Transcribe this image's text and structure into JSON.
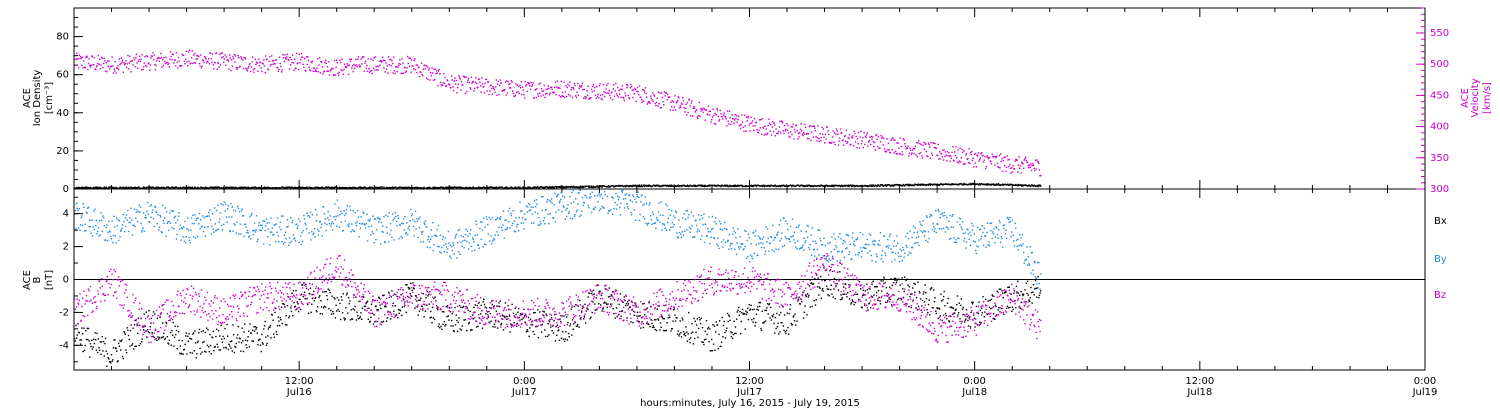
{
  "chart_data": [
    {
      "type": "scatter",
      "panel": "top",
      "ylabel_left": [
        "ACE",
        "Ion Density",
        "[cm⁻³]"
      ],
      "ylabel_right": [
        "ACE",
        "Velocity",
        "[km/s]"
      ],
      "ylim_left": [
        0,
        95
      ],
      "ylim_right": [
        300,
        590
      ],
      "left_ticks": [
        "0",
        "20",
        "40",
        "60",
        "80"
      ],
      "right_ticks": [
        "300",
        "350",
        "400",
        "450",
        "500",
        "550"
      ],
      "x_range_hours": [
        0,
        72
      ],
      "data_end_hours": 51.5,
      "series": [
        {
          "axis": "right",
          "color": "#cc00cc",
          "x": [
            0,
            2,
            4,
            6,
            8,
            10,
            12,
            14,
            15,
            18,
            20,
            22,
            24,
            26,
            28,
            30,
            32,
            34,
            36,
            38,
            40,
            42,
            44,
            46,
            48,
            50,
            51.5
          ],
          "values": [
            505,
            500,
            505,
            510,
            505,
            500,
            505,
            495,
            500,
            500,
            470,
            465,
            460,
            462,
            458,
            455,
            438,
            420,
            405,
            395,
            388,
            380,
            370,
            360,
            350,
            340,
            336
          ]
        },
        {
          "axis": "left",
          "color": "#000000",
          "x": [
            0,
            6,
            12,
            18,
            24,
            30,
            36,
            42,
            48,
            51.5
          ],
          "values": [
            1,
            1,
            1,
            1,
            1,
            2,
            2,
            2,
            3,
            2
          ]
        }
      ]
    },
    {
      "type": "scatter",
      "panel": "bottom",
      "ylabel": [
        "ACE",
        "B",
        "[nT]"
      ],
      "ylim": [
        -5.5,
        5.5
      ],
      "ticks": [
        "-4",
        "-2",
        "0",
        "2",
        "4"
      ],
      "x_range_hours": [
        0,
        72
      ],
      "data_end_hours": 51.5,
      "legend": [
        "Bx",
        "By",
        "Bz"
      ],
      "series": [
        {
          "name": "Bx",
          "color": "#000000",
          "x": [
            0,
            1,
            2,
            4,
            6,
            8,
            10,
            12,
            14,
            16,
            18,
            20,
            22,
            24,
            26,
            28,
            30,
            32,
            34,
            36,
            38,
            40,
            42,
            44,
            46,
            48,
            50,
            51.5
          ],
          "values": [
            -3,
            -4,
            -4.5,
            -2.5,
            -4,
            -3.5,
            -3.5,
            -1,
            -1.5,
            -2,
            -1,
            -2.5,
            -2,
            -2.5,
            -3,
            -1,
            -2,
            -2.5,
            -3.5,
            -2,
            -2.5,
            0,
            -1,
            -0.5,
            -1.5,
            -2,
            -1,
            -0.5
          ]
        },
        {
          "name": "By",
          "color": "#1e88e5",
          "x": [
            0,
            2,
            4,
            6,
            8,
            10,
            12,
            14,
            16,
            18,
            20,
            22,
            24,
            26,
            28,
            30,
            32,
            34,
            36,
            38,
            40,
            42,
            44,
            46,
            48,
            50,
            51.5
          ],
          "values": [
            4,
            3,
            4,
            3,
            4,
            3,
            3,
            4,
            3,
            3.5,
            2,
            3,
            4,
            4.5,
            5,
            4.5,
            3.5,
            3,
            2,
            3,
            2,
            2,
            2,
            3.5,
            2.5,
            3,
            0
          ]
        },
        {
          "name": "Bz",
          "color": "#cc00cc",
          "x": [
            0,
            2,
            4,
            6,
            8,
            10,
            12,
            14,
            16,
            18,
            20,
            22,
            24,
            26,
            28,
            30,
            32,
            34,
            36,
            38,
            40,
            42,
            44,
            46,
            48,
            50,
            51.5
          ],
          "values": [
            -2,
            0,
            -3,
            -1,
            -2,
            -1,
            -1,
            1,
            -2,
            -1,
            -1,
            -2,
            -2,
            -2,
            -1,
            -2,
            -1,
            0,
            0,
            -1,
            1,
            -1,
            -1,
            -3,
            -2.5,
            -1,
            -3
          ]
        }
      ]
    }
  ],
  "x_axis": {
    "ticks": [
      {
        "hours": 12,
        "time": "12:00",
        "date": "Jul16"
      },
      {
        "hours": 24,
        "time": "0:00",
        "date": "Jul17"
      },
      {
        "hours": 36,
        "time": "12:00",
        "date": "Jul17"
      },
      {
        "hours": 48,
        "time": "0:00",
        "date": "Jul18"
      },
      {
        "hours": 60,
        "time": "12:00",
        "date": "Jul18"
      },
      {
        "hours": 72,
        "time": "0:00",
        "date": "Jul19"
      }
    ],
    "title": "hours:minutes, July 16, 2015 - July 19, 2015"
  },
  "colors": {
    "magenta": "#cc00cc",
    "blue": "#1e88e5",
    "black": "#000000"
  }
}
